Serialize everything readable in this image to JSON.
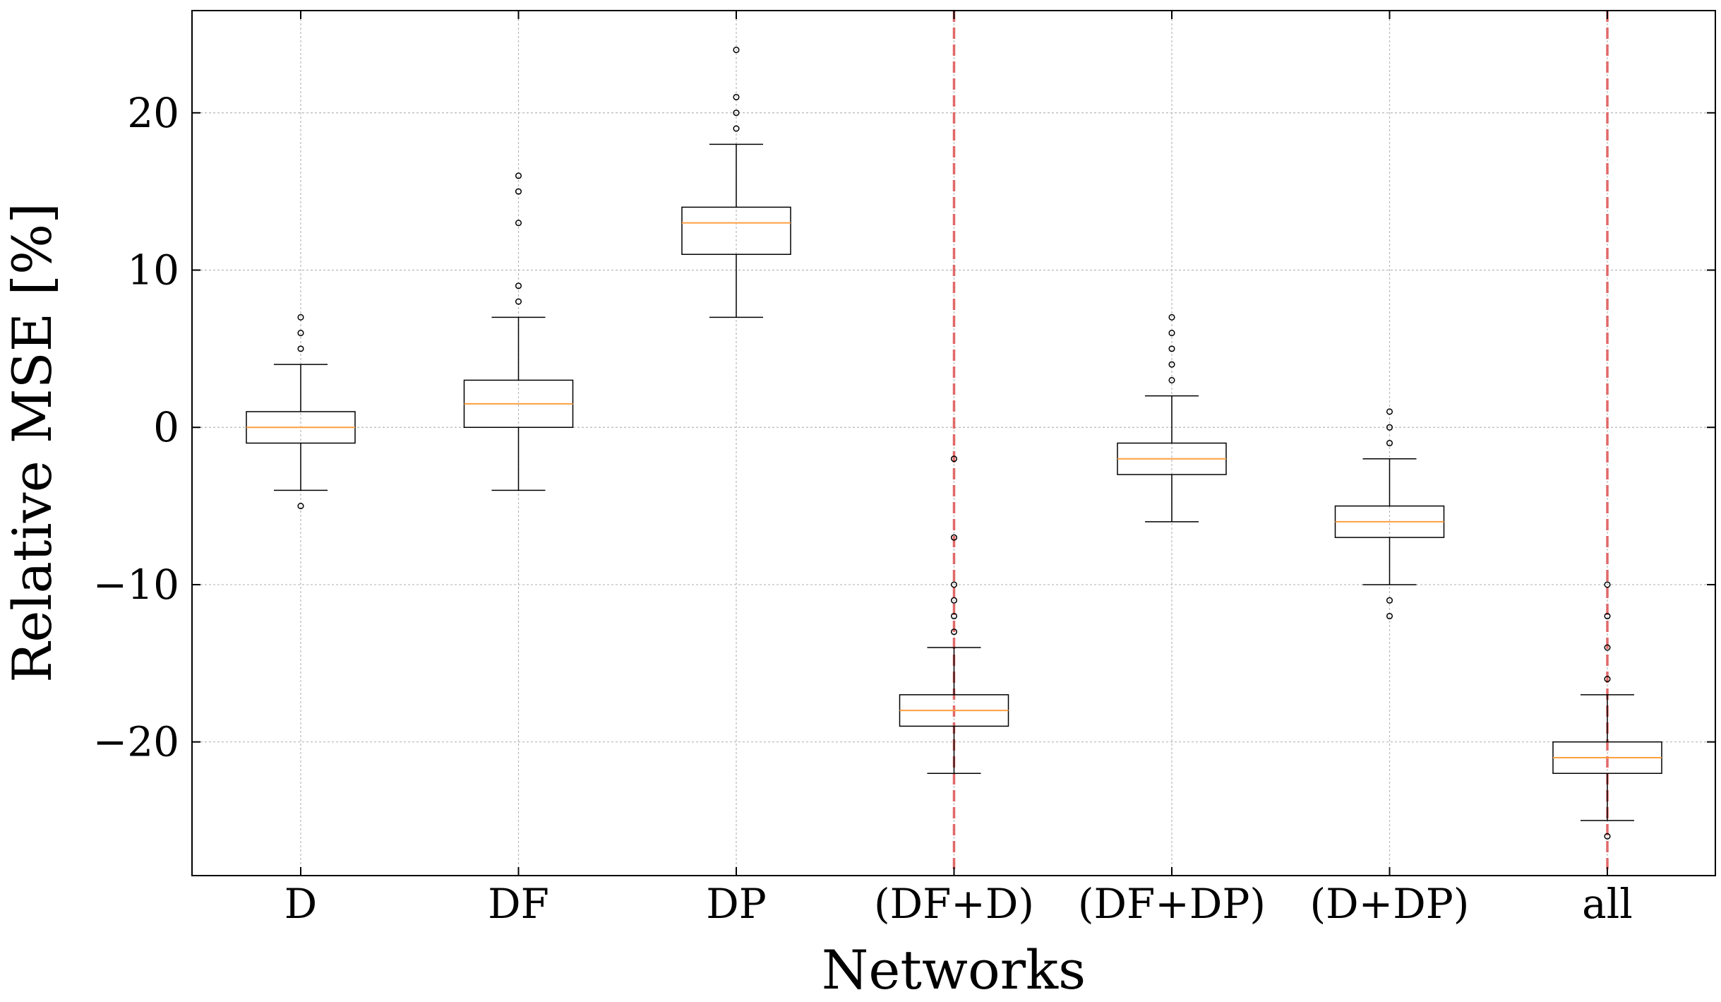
{
  "chart_data": {
    "type": "box",
    "xlabel": "Networks",
    "ylabel": "Relative MSE [%]",
    "ylim": [
      -28.5,
      26.5
    ],
    "yticks": [
      20,
      10,
      0,
      -10,
      -20
    ],
    "ytick_labels": [
      "20",
      "10",
      "0",
      "−10",
      "−20"
    ],
    "grid": true,
    "categories": [
      "D",
      "DF",
      "DP",
      "(DF+D)",
      "(DF+DP)",
      "(D+DP)",
      "all"
    ],
    "boxes": [
      {
        "label": "D",
        "whisker_low": -4,
        "q1": -1,
        "median": 0,
        "q3": 1,
        "whisker_high": 4,
        "outliers": [
          7,
          6,
          5,
          -5
        ]
      },
      {
        "label": "DF",
        "whisker_low": -4,
        "q1": 0,
        "median": 1.5,
        "q3": 3,
        "whisker_high": 7,
        "outliers": [
          16,
          15,
          13,
          9,
          8
        ]
      },
      {
        "label": "DP",
        "whisker_low": 7,
        "q1": 11,
        "median": 13,
        "q3": 14,
        "whisker_high": 18,
        "outliers": [
          24,
          21,
          20,
          19
        ]
      },
      {
        "label": "(DF+D)",
        "whisker_low": -22,
        "q1": -19,
        "median": -18,
        "q3": -17,
        "whisker_high": -14,
        "outliers": [
          -2,
          -7,
          -10,
          -11,
          -12,
          -13
        ]
      },
      {
        "label": "(DF+DP)",
        "whisker_low": -6,
        "q1": -3,
        "median": -2,
        "q3": -1,
        "whisker_high": 2,
        "outliers": [
          7,
          6,
          5,
          4,
          3
        ]
      },
      {
        "label": "(D+DP)",
        "whisker_low": -10,
        "q1": -7,
        "median": -6,
        "q3": -5,
        "whisker_high": -2,
        "outliers": [
          1,
          0,
          -1,
          -11,
          -12
        ]
      },
      {
        "label": "all",
        "whisker_low": -25,
        "q1": -22,
        "median": -21,
        "q3": -20,
        "whisker_high": -17,
        "outliers": [
          -10,
          -12,
          -14,
          -16,
          -26
        ]
      }
    ],
    "vertical_reference_lines": [
      {
        "at_category": "(DF+D)",
        "style": "dashed",
        "color": "#e05a5a"
      },
      {
        "at_category": "all",
        "style": "dashed",
        "color": "#e05a5a"
      }
    ],
    "colors": {
      "median": "#ff9f40",
      "box": "#000000",
      "grid": "#b8b8b8",
      "reference_line": "#e05a5a"
    }
  }
}
